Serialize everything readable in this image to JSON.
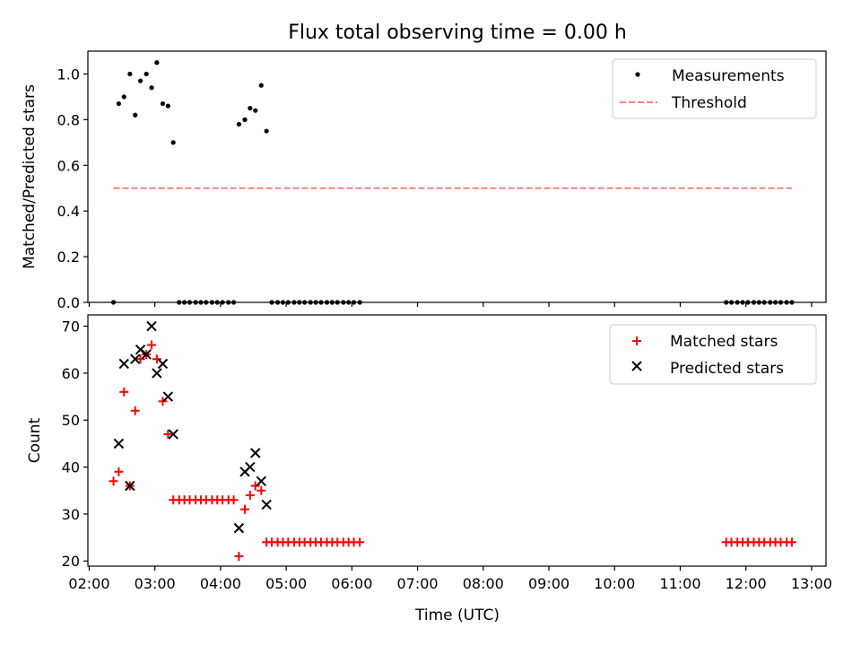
{
  "title": "Flux total observing time = 0.00 h",
  "chart_data": [
    {
      "type": "scatter",
      "ylabel": "Matched/Predicted stars",
      "xlim": [
        1.98,
        13.22
      ],
      "ylim": [
        0.0,
        1.1
      ],
      "yticks": [
        0.0,
        0.2,
        0.4,
        0.6,
        0.8,
        1.0
      ],
      "ytick_labels": [
        "0.0",
        "0.2",
        "0.4",
        "0.6",
        "0.8",
        "1.0"
      ],
      "legend_position": "top-right",
      "series": [
        {
          "name": "Measurements",
          "marker": "dot",
          "color": "#000000",
          "x": [
            2.37,
            2.45,
            2.53,
            2.62,
            2.7,
            2.78,
            2.87,
            2.95,
            3.03,
            3.12,
            3.2,
            3.28,
            3.37,
            3.45,
            3.53,
            3.62,
            3.7,
            3.78,
            3.87,
            3.95,
            4.03,
            4.12,
            4.2,
            4.28,
            4.37,
            4.45,
            4.53,
            4.62,
            4.7,
            4.78,
            4.87,
            4.95,
            5.03,
            5.12,
            5.2,
            5.28,
            5.37,
            5.45,
            5.53,
            5.62,
            5.7,
            5.78,
            5.87,
            5.95,
            6.03,
            6.12,
            11.7,
            11.78,
            11.87,
            11.95,
            12.03,
            12.12,
            12.2,
            12.28,
            12.37,
            12.45,
            12.53,
            12.62,
            12.7
          ],
          "y": [
            0.0,
            0.87,
            0.9,
            1.0,
            0.82,
            0.97,
            1.0,
            0.94,
            1.05,
            0.87,
            0.86,
            0.7,
            0.0,
            0.0,
            0.0,
            0.0,
            0.0,
            0.0,
            0.0,
            0.0,
            0.0,
            0.0,
            0.0,
            0.78,
            0.8,
            0.85,
            0.84,
            0.95,
            0.75,
            0.0,
            0.0,
            0.0,
            0.0,
            0.0,
            0.0,
            0.0,
            0.0,
            0.0,
            0.0,
            0.0,
            0.0,
            0.0,
            0.0,
            0.0,
            0.0,
            0.0,
            0.0,
            0.0,
            0.0,
            0.0,
            0.0,
            0.0,
            0.0,
            0.0,
            0.0,
            0.0,
            0.0,
            0.0,
            0.0
          ]
        },
        {
          "name": "Threshold",
          "marker": "dashed-line",
          "color": "#ff7f7f",
          "x": [
            2.37,
            12.7
          ],
          "y": [
            0.5,
            0.5
          ]
        }
      ]
    },
    {
      "type": "scatter",
      "xlabel": "Time (UTC)",
      "ylabel": "Count",
      "xlim": [
        1.98,
        13.22
      ],
      "ylim": [
        18.9,
        72.4
      ],
      "xticks": [
        2,
        3,
        4,
        5,
        6,
        7,
        8,
        9,
        10,
        11,
        12,
        13
      ],
      "xtick_labels": [
        "02:00",
        "03:00",
        "04:00",
        "05:00",
        "06:00",
        "07:00",
        "08:00",
        "09:00",
        "10:00",
        "11:00",
        "12:00",
        "13:00"
      ],
      "yticks": [
        20,
        30,
        40,
        50,
        60,
        70
      ],
      "ytick_labels": [
        "20",
        "30",
        "40",
        "50",
        "60",
        "70"
      ],
      "legend_position": "top-right",
      "series": [
        {
          "name": "Matched stars",
          "marker": "plus",
          "color": "#ff0000",
          "x": [
            2.37,
            2.45,
            2.53,
            2.62,
            2.7,
            2.78,
            2.87,
            2.95,
            3.03,
            3.12,
            3.2,
            3.28,
            3.37,
            3.45,
            3.53,
            3.62,
            3.7,
            3.78,
            3.87,
            3.95,
            4.03,
            4.12,
            4.2,
            4.28,
            4.37,
            4.45,
            4.53,
            4.62,
            4.7,
            4.78,
            4.87,
            4.95,
            5.03,
            5.12,
            5.2,
            5.28,
            5.37,
            5.45,
            5.53,
            5.62,
            5.7,
            5.78,
            5.87,
            5.95,
            6.03,
            6.12,
            11.7,
            11.78,
            11.87,
            11.95,
            12.03,
            12.12,
            12.2,
            12.28,
            12.37,
            12.45,
            12.53,
            12.62,
            12.7
          ],
          "y": [
            37,
            39,
            56,
            36,
            52,
            63,
            64,
            66,
            63,
            54,
            47,
            33,
            33,
            33,
            33,
            33,
            33,
            33,
            33,
            33,
            33,
            33,
            33,
            21,
            31,
            34,
            36,
            35,
            24,
            24,
            24,
            24,
            24,
            24,
            24,
            24,
            24,
            24,
            24,
            24,
            24,
            24,
            24,
            24,
            24,
            24,
            24,
            24,
            24,
            24,
            24,
            24,
            24,
            24,
            24,
            24,
            24,
            24,
            24
          ]
        },
        {
          "name": "Predicted stars",
          "marker": "x",
          "color": "#000000",
          "x": [
            2.45,
            2.53,
            2.62,
            2.7,
            2.78,
            2.87,
            2.95,
            3.03,
            3.12,
            3.2,
            3.28,
            4.28,
            4.37,
            4.45,
            4.53,
            4.62,
            4.7
          ],
          "y": [
            45,
            62,
            36,
            63,
            65,
            64,
            70,
            60,
            62,
            55,
            47,
            27,
            39,
            40,
            43,
            37,
            32
          ]
        }
      ]
    }
  ]
}
